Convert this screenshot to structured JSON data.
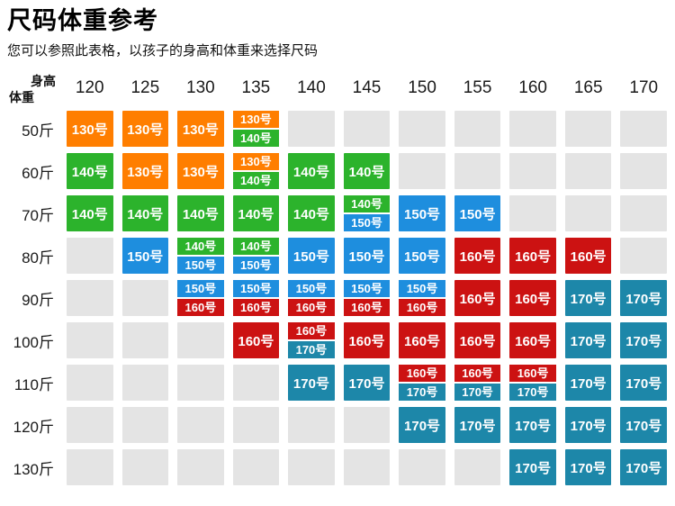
{
  "chart_data": {
    "type": "table",
    "title": "尺码体重参考",
    "subtitle": "您可以参照此表格，以孩子的身高和体重来选择尺码",
    "x_axis_label": "身高",
    "y_axis_label": "体重",
    "columns": [
      "120",
      "125",
      "130",
      "135",
      "140",
      "145",
      "150",
      "155",
      "160",
      "165",
      "170"
    ],
    "colors": {
      "130号": "#ff7e00",
      "140号": "#2cb32c",
      "150号": "#1e8ede",
      "160号": "#cc1212",
      "170号": "#1d87a9",
      "empty": "#e4e4e4"
    },
    "rows": [
      {
        "label": "50斤",
        "cells": [
          [
            "130号"
          ],
          [
            "130号"
          ],
          [
            "130号"
          ],
          [
            "130号",
            "140号"
          ],
          [],
          [],
          [],
          [],
          [],
          [],
          []
        ]
      },
      {
        "label": "60斤",
        "cells": [
          [
            "140号"
          ],
          [
            "130号"
          ],
          [
            "130号"
          ],
          [
            "130号",
            "140号"
          ],
          [
            "140号"
          ],
          [
            "140号"
          ],
          [],
          [],
          [],
          [],
          []
        ]
      },
      {
        "label": "70斤",
        "cells": [
          [
            "140号"
          ],
          [
            "140号"
          ],
          [
            "140号"
          ],
          [
            "140号"
          ],
          [
            "140号"
          ],
          [
            "140号",
            "150号"
          ],
          [
            "150号"
          ],
          [
            "150号"
          ],
          [],
          [],
          []
        ]
      },
      {
        "label": "80斤",
        "cells": [
          [],
          [
            "150号"
          ],
          [
            "140号",
            "150号"
          ],
          [
            "140号",
            "150号"
          ],
          [
            "150号"
          ],
          [
            "150号"
          ],
          [
            "150号"
          ],
          [
            "160号"
          ],
          [
            "160号"
          ],
          [
            "160号"
          ],
          []
        ]
      },
      {
        "label": "90斤",
        "cells": [
          [],
          [],
          [
            "150号",
            "160号"
          ],
          [
            "150号",
            "160号"
          ],
          [
            "150号",
            "160号"
          ],
          [
            "150号",
            "160号"
          ],
          [
            "150号",
            "160号"
          ],
          [
            "160号"
          ],
          [
            "160号"
          ],
          [
            "170号"
          ],
          [
            "170号"
          ]
        ]
      },
      {
        "label": "100斤",
        "cells": [
          [],
          [],
          [],
          [
            "160号"
          ],
          [
            "160号",
            "170号"
          ],
          [
            "160号"
          ],
          [
            "160号"
          ],
          [
            "160号"
          ],
          [
            "160号"
          ],
          [
            "170号"
          ],
          [
            "170号"
          ]
        ]
      },
      {
        "label": "110斤",
        "cells": [
          [],
          [],
          [],
          [],
          [
            "170号"
          ],
          [
            "170号"
          ],
          [
            "160号",
            "170号"
          ],
          [
            "160号",
            "170号"
          ],
          [
            "160号",
            "170号"
          ],
          [
            "170号"
          ],
          [
            "170号"
          ]
        ]
      },
      {
        "label": "120斤",
        "cells": [
          [],
          [],
          [],
          [],
          [],
          [],
          [
            "170号"
          ],
          [
            "170号"
          ],
          [
            "170号"
          ],
          [
            "170号"
          ],
          [
            "170号"
          ]
        ]
      },
      {
        "label": "130斤",
        "cells": [
          [],
          [],
          [],
          [],
          [],
          [],
          [],
          [],
          [
            "170号"
          ],
          [
            "170号"
          ],
          [
            "170号"
          ]
        ]
      }
    ]
  }
}
